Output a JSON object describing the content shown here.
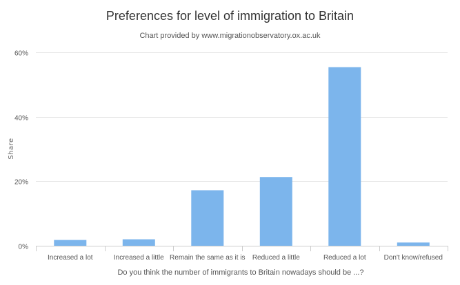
{
  "chart_data": {
    "type": "bar",
    "title": "Preferences for level of immigration to Britain",
    "subtitle": "Chart provided by www.migrationobservatory.ox.ac.uk",
    "xlabel": "Do you think the number of immigrants to Britain nowadays should be ...?",
    "ylabel": "Share",
    "categories": [
      "Increased a lot",
      "Increased a little",
      "Remain the same as it is",
      "Reduced a little",
      "Reduced a lot",
      "Don't know/refused"
    ],
    "values": [
      1.8,
      2.0,
      17.2,
      21.3,
      55.4,
      1.0
    ],
    "ylim": [
      0,
      60
    ],
    "yticks": [
      0,
      20,
      40,
      60
    ],
    "ytick_labels": [
      "0%",
      "20%",
      "40%",
      "60%"
    ],
    "grid": true,
    "legend": "none",
    "bar_color": "#7cb5ec"
  }
}
